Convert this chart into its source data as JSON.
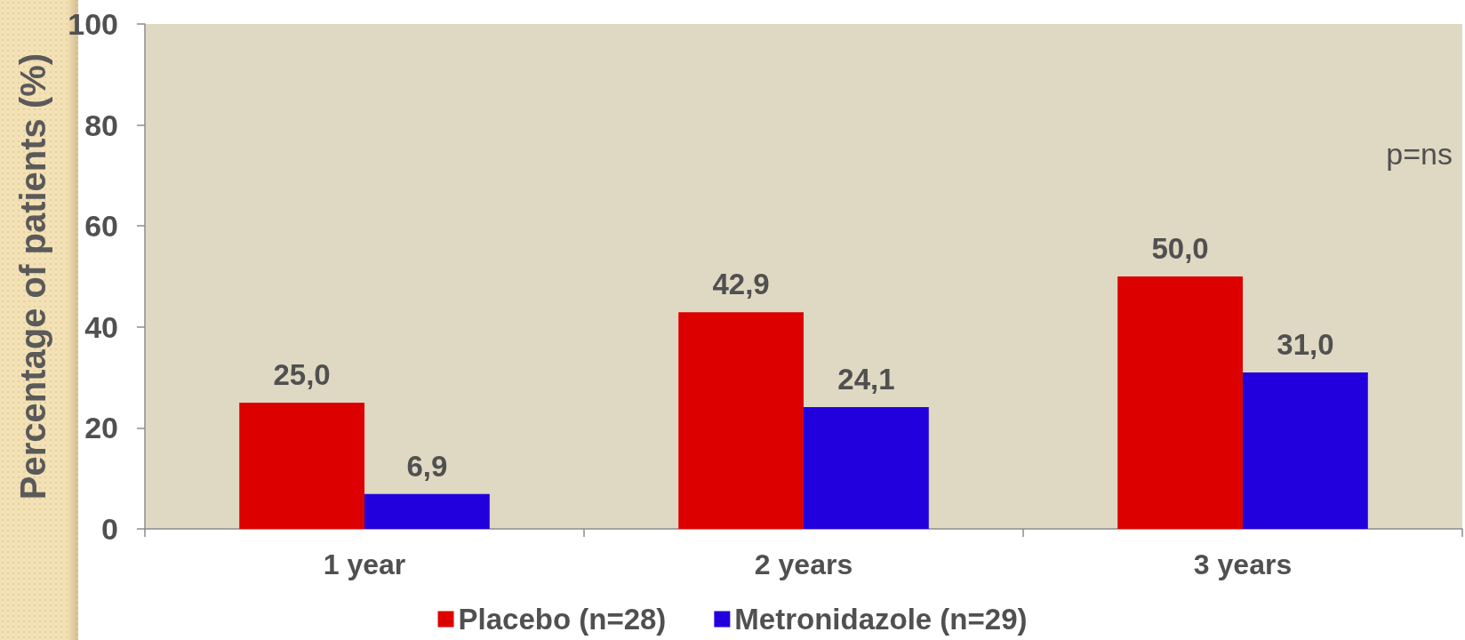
{
  "chart_data": {
    "type": "bar",
    "ylabel": "Percentage of patients (%)",
    "categories": [
      "1 year",
      "2 years",
      "3 years"
    ],
    "series": [
      {
        "name": "Placebo (n=28)",
        "color": "#dd0000",
        "values": [
          25.0,
          42.9,
          50.0
        ],
        "value_labels": [
          "25,0",
          "42,9",
          "50,0"
        ]
      },
      {
        "name": "Metronidazole (n=29)",
        "color": "#2200dd",
        "values": [
          6.9,
          24.1,
          31.0
        ],
        "value_labels": [
          "6,9",
          "24,1",
          "31,0"
        ]
      }
    ],
    "ylim": [
      0,
      100
    ],
    "yticks": [
      0,
      20,
      40,
      60,
      80,
      100
    ],
    "annotations": [
      "p=ns"
    ],
    "legend": "bottom",
    "grid": false
  }
}
